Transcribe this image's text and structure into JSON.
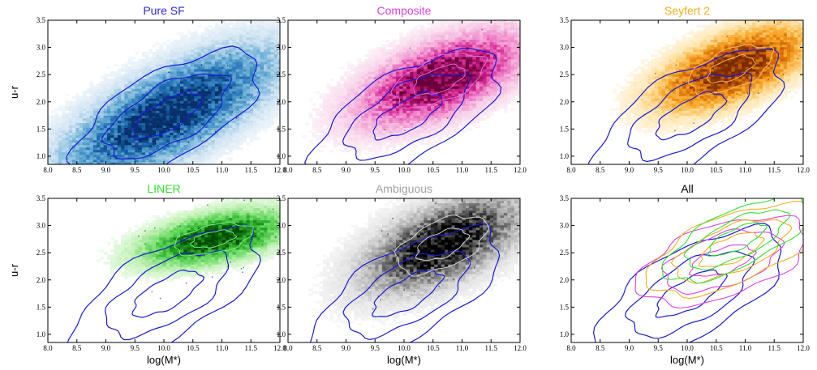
{
  "figure": {
    "xlabel": "log(M*)",
    "ylabel": "u-r",
    "xticks": [
      "8.0",
      "8.5",
      "9.0",
      "9.5",
      "10.0",
      "10.5",
      "11.0",
      "11.5",
      "12.0"
    ],
    "yticks": [
      "1.0",
      "1.5",
      "2.0",
      "2.5",
      "3.0",
      "3.5"
    ]
  },
  "chart_data": [
    {
      "type": "heatmap",
      "title": "Pure SF",
      "title_color": "#2a2ad8",
      "cmap": [
        "#ffffff",
        "#cfe3f2",
        "#6baed6",
        "#2171b5",
        "#08306b"
      ],
      "xlim": [
        8.0,
        12.0
      ],
      "ylim": [
        0.85,
        3.5
      ],
      "center": [
        10.05,
        1.75
      ],
      "spread": [
        0.75,
        0.33
      ],
      "tilt": 28,
      "contour_color": "#1a1ad6",
      "contours": [
        {
          "center": [
            10.05,
            1.75
          ],
          "radii": [
            0.35,
            0.14,
            0.62,
            0.28,
            0.95,
            0.42
          ]
        }
      ],
      "scatter_color": "#000000"
    },
    {
      "type": "heatmap",
      "title": "Composite",
      "title_color": "#e040e0",
      "cmap": [
        "#ffffff",
        "#f7d0e8",
        "#f080c8",
        "#d0208c",
        "#6a003a"
      ],
      "xlim": [
        8.0,
        12.0
      ],
      "ylim": [
        0.85,
        3.5
      ],
      "center": [
        10.6,
        2.4
      ],
      "spread": [
        0.55,
        0.28
      ],
      "tilt": 22,
      "contour_color": "#1a1ad6",
      "contours": [
        {
          "center": [
            10.05,
            1.75
          ],
          "radii": [
            0.35,
            0.14,
            0.62,
            0.28,
            0.95,
            0.42
          ]
        }
      ],
      "overlay_contour_color": "#e070e0",
      "scatter_color": "#8a0050"
    },
    {
      "type": "heatmap",
      "title": "Seyfert 2",
      "title_color": "#f0b020",
      "cmap": [
        "#ffffff",
        "#fde3a8",
        "#f9a828",
        "#d66a06",
        "#7a2a00"
      ],
      "xlim": [
        8.0,
        12.0
      ],
      "ylim": [
        0.85,
        3.5
      ],
      "center": [
        10.75,
        2.6
      ],
      "spread": [
        0.5,
        0.25
      ],
      "tilt": 22,
      "contour_color": "#1a1ad6",
      "contours": [
        {
          "center": [
            10.05,
            1.75
          ],
          "radii": [
            0.35,
            0.14,
            0.62,
            0.28,
            0.95,
            0.42
          ]
        }
      ],
      "overlay_contour_color": "#f6c060",
      "scatter_color": "#7a2a00"
    },
    {
      "type": "heatmap",
      "title": "LINER",
      "title_color": "#33e033",
      "cmap": [
        "#ffffff",
        "#bdf0b0",
        "#5fd65a",
        "#1f9e1f",
        "#064a06"
      ],
      "xlim": [
        8.0,
        12.0
      ],
      "ylim": [
        0.85,
        3.5
      ],
      "center": [
        10.85,
        2.75
      ],
      "spread": [
        0.45,
        0.18
      ],
      "tilt": 12,
      "contour_color": "#1a1ad6",
      "contours": [
        {
          "center": [
            10.05,
            1.75
          ],
          "radii": [
            0.35,
            0.14,
            0.62,
            0.28,
            0.95,
            0.42
          ]
        }
      ],
      "overlay_contour_color": "#7ff07f",
      "scatter_color": "#064a06"
    },
    {
      "type": "heatmap",
      "title": "Ambiguous",
      "title_color": "#a0a0a0",
      "cmap": [
        "#ffffff",
        "#e0e0e0",
        "#a8a8a8",
        "#555555",
        "#000000"
      ],
      "xlim": [
        8.0,
        12.0
      ],
      "ylim": [
        0.85,
        3.5
      ],
      "center": [
        10.65,
        2.65
      ],
      "spread": [
        0.55,
        0.3
      ],
      "tilt": 24,
      "contour_color": "#1a1ad6",
      "contours": [
        {
          "center": [
            10.05,
            1.75
          ],
          "radii": [
            0.35,
            0.14,
            0.62,
            0.28,
            0.95,
            0.42
          ]
        }
      ],
      "overlay_contour_color": "#d8d8d8",
      "scatter_color": "#111111"
    },
    {
      "type": "heatmap",
      "title": "All",
      "title_color": "#000000",
      "cmap": [],
      "xlim": [
        8.0,
        12.0
      ],
      "ylim": [
        0.85,
        3.5
      ],
      "contour_color": "#1a1ad6",
      "contours": [
        {
          "center": [
            10.05,
            1.75
          ],
          "radii": [
            0.35,
            0.14,
            0.62,
            0.28,
            0.95,
            0.42
          ]
        }
      ],
      "overlays": [
        {
          "color": "#e040e0",
          "center": [
            10.6,
            2.35
          ],
          "radii": [
            0.3,
            0.12,
            0.55,
            0.25,
            0.8,
            0.35
          ]
        },
        {
          "color": "#f0b020",
          "center": [
            10.75,
            2.55
          ],
          "radii": [
            0.3,
            0.12,
            0.55,
            0.22,
            0.8,
            0.33
          ]
        },
        {
          "color": "#33e033",
          "center": [
            10.85,
            2.75
          ],
          "radii": [
            0.28,
            0.1,
            0.5,
            0.18,
            0.72,
            0.27
          ]
        }
      ]
    }
  ]
}
